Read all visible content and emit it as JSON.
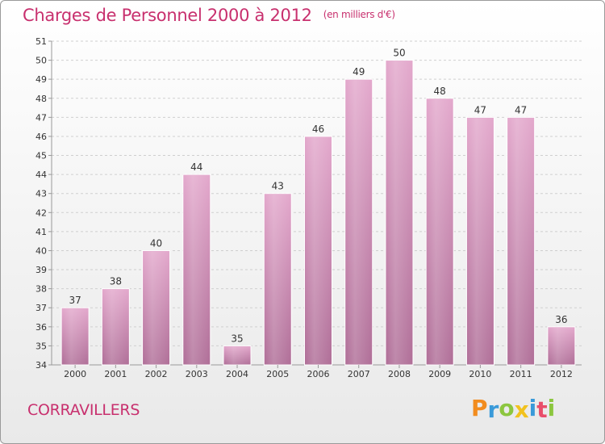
{
  "title": "Charges de Personnel 2000 à 2012",
  "subtitle": "(en milliers d'€)",
  "commune": "CORRAVILLERS",
  "logo": {
    "letters": [
      "P",
      "r",
      "o",
      "x",
      "i",
      "t",
      "i"
    ],
    "colors": [
      "#f28c1e",
      "#3a9ad9",
      "#8cc63f",
      "#f2c21e",
      "#3a9ad9",
      "#e94e6a",
      "#8cc63f"
    ]
  },
  "colors": {
    "bar_top": "#e3a8cc",
    "bar_bottom": "#b06f98",
    "text_accent": "#c8306e"
  },
  "chart_data": {
    "type": "bar",
    "categories": [
      "2000",
      "2001",
      "2002",
      "2003",
      "2004",
      "2005",
      "2006",
      "2007",
      "2008",
      "2009",
      "2010",
      "2011",
      "2012"
    ],
    "values": [
      37,
      38,
      40,
      44,
      35,
      43,
      46,
      49,
      50,
      48,
      47,
      47,
      36
    ],
    "title": "Charges de Personnel 2000 à 2012",
    "ylabel": "",
    "xlabel": "",
    "ylim": [
      34,
      51
    ],
    "yticks": [
      34,
      35,
      36,
      37,
      38,
      39,
      40,
      41,
      42,
      43,
      44,
      45,
      46,
      47,
      48,
      49,
      50,
      51
    ],
    "grid": true,
    "data_labels": true
  }
}
